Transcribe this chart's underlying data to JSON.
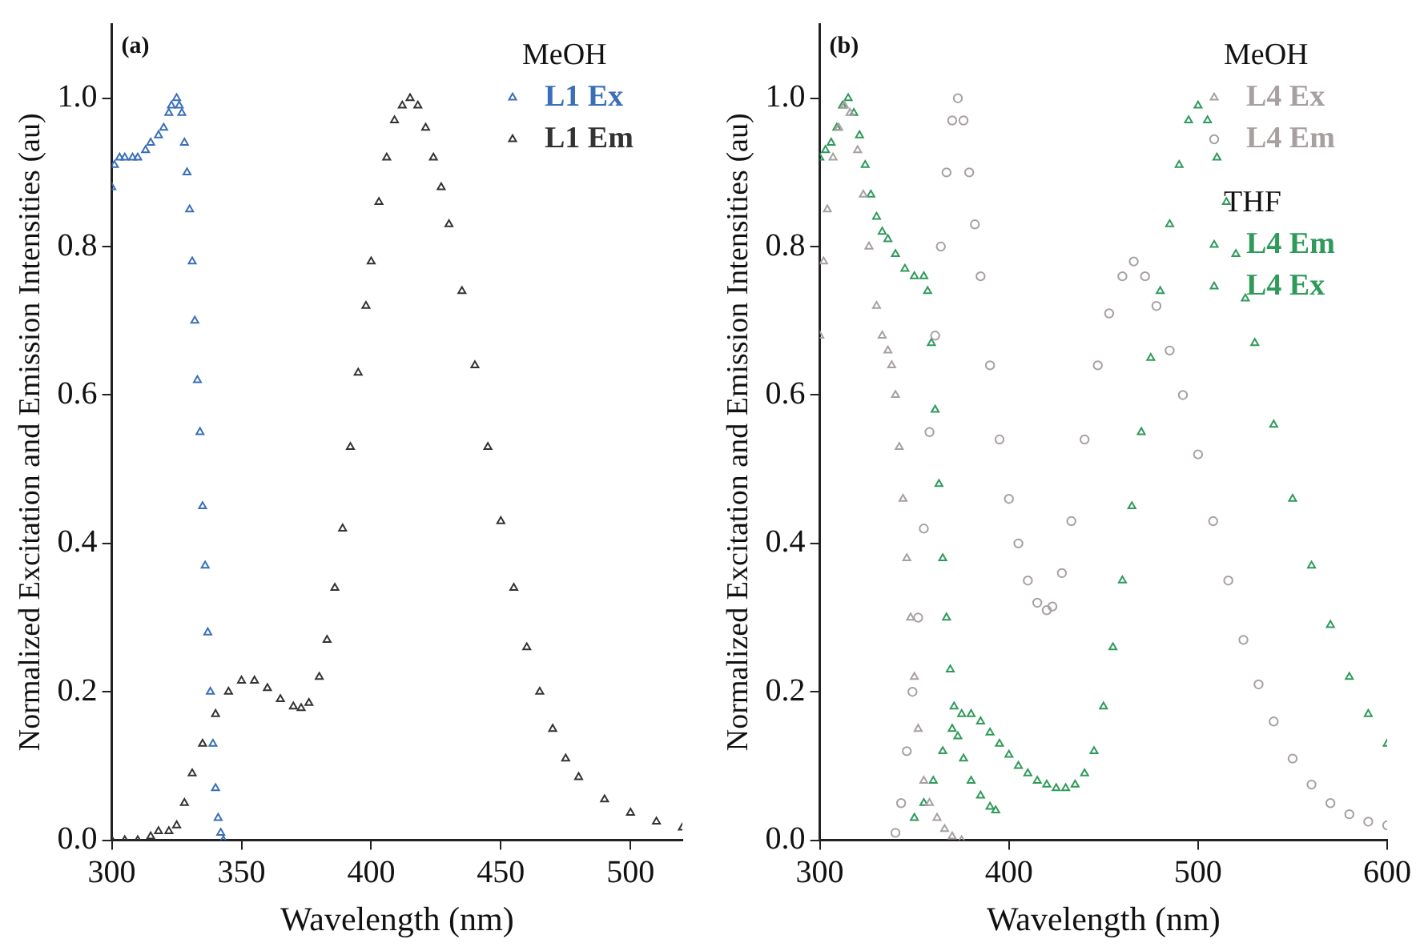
{
  "chart_data": [
    {
      "type": "scatter",
      "title": "(a)",
      "xlabel": "Wavelength (nm)",
      "ylabel": "Normalized Excitation and Emission Intensities (au)",
      "annotations": [
        "MeOH"
      ],
      "xlim": [
        300,
        520
      ],
      "xticks": [
        300,
        350,
        400,
        450,
        500
      ],
      "ylim": [
        0,
        1.1
      ],
      "yticks": [
        {
          "value": 0,
          "label": "0.0"
        },
        {
          "value": 0.2,
          "label": "0.2"
        },
        {
          "value": 0.4,
          "label": "0.4"
        },
        {
          "value": 0.6,
          "label": "0.6"
        },
        {
          "value": 0.8,
          "label": "0.8"
        },
        {
          "value": 1,
          "label": "1.0"
        }
      ],
      "grid": false,
      "legend": "top right",
      "series": [
        {
          "name": "L1 Ex",
          "color": "#3a6fb8",
          "marker": "triangle",
          "x": [
            300,
            301,
            303,
            305,
            308,
            310,
            313,
            315,
            318,
            320,
            322,
            323,
            325,
            326,
            327,
            328,
            329,
            330,
            331,
            332,
            333,
            334,
            335,
            336,
            337,
            338,
            339,
            340,
            341,
            342,
            343
          ],
          "values": [
            0.88,
            0.91,
            0.92,
            0.92,
            0.92,
            0.92,
            0.93,
            0.94,
            0.95,
            0.96,
            0.98,
            0.99,
            1.0,
            0.99,
            0.98,
            0.94,
            0.9,
            0.85,
            0.78,
            0.7,
            0.62,
            0.55,
            0.45,
            0.37,
            0.28,
            0.2,
            0.13,
            0.07,
            0.03,
            0.01,
            0.0
          ]
        },
        {
          "name": "L1 Em",
          "color": "#333333",
          "marker": "triangle",
          "x": [
            300,
            305,
            310,
            315,
            318,
            322,
            325,
            328,
            331,
            335,
            340,
            345,
            350,
            355,
            360,
            365,
            370,
            373,
            376,
            380,
            383,
            386,
            389,
            392,
            395,
            398,
            400,
            403,
            406,
            409,
            412,
            415,
            418,
            421,
            424,
            427,
            430,
            435,
            440,
            445,
            450,
            455,
            460,
            465,
            470,
            475,
            480,
            490,
            500,
            510,
            520
          ],
          "values": [
            0,
            0,
            0,
            0.005,
            0.012,
            0.012,
            0.02,
            0.05,
            0.09,
            0.13,
            0.17,
            0.2,
            0.215,
            0.215,
            0.205,
            0.19,
            0.18,
            0.178,
            0.185,
            0.22,
            0.27,
            0.34,
            0.42,
            0.53,
            0.63,
            0.72,
            0.78,
            0.86,
            0.92,
            0.97,
            0.99,
            1.0,
            0.99,
            0.96,
            0.92,
            0.88,
            0.83,
            0.74,
            0.64,
            0.53,
            0.43,
            0.34,
            0.26,
            0.2,
            0.15,
            0.11,
            0.085,
            0.055,
            0.037,
            0.025,
            0.017
          ]
        }
      ]
    },
    {
      "type": "scatter",
      "title": "(b)",
      "xlabel": "Wavelength (nm)",
      "ylabel": "Normalized Excitation and Emission Intensities (au)",
      "annotations": [
        "MeOH",
        "THF"
      ],
      "xlim": [
        300,
        600
      ],
      "xticks": [
        300,
        400,
        500,
        600
      ],
      "ylim": [
        0,
        1.1
      ],
      "yticks": [
        {
          "value": 0,
          "label": "0.0"
        },
        {
          "value": 0.2,
          "label": "0.2"
        },
        {
          "value": 0.4,
          "label": "0.4"
        },
        {
          "value": 0.6,
          "label": "0.6"
        },
        {
          "value": 0.8,
          "label": "0.8"
        },
        {
          "value": 1,
          "label": "1.0"
        }
      ],
      "grid": false,
      "legend": "top right",
      "series": [
        {
          "name": "L4 Ex",
          "color": "#a8a0a0",
          "marker": "triangle",
          "x": [
            300,
            302,
            304,
            307,
            310,
            313,
            316,
            320,
            323,
            326,
            330,
            333,
            336,
            338,
            340,
            342,
            344,
            346,
            348,
            350,
            352,
            355,
            358,
            362,
            366,
            370,
            375
          ],
          "values": [
            0.68,
            0.78,
            0.85,
            0.92,
            0.96,
            0.99,
            0.98,
            0.93,
            0.87,
            0.8,
            0.72,
            0.68,
            0.66,
            0.64,
            0.6,
            0.53,
            0.46,
            0.38,
            0.3,
            0.22,
            0.15,
            0.08,
            0.05,
            0.03,
            0.015,
            0.005,
            0
          ]
        },
        {
          "name": "L4 Em",
          "color": "#a8a0a0",
          "marker": "circle",
          "x": [
            340,
            343,
            346,
            349,
            352,
            355,
            358,
            361,
            364,
            367,
            370,
            373,
            376,
            379,
            382,
            385,
            390,
            395,
            400,
            405,
            410,
            415,
            420,
            423,
            428,
            433,
            440,
            447,
            453,
            460,
            466,
            472,
            478,
            485,
            492,
            500,
            508,
            516,
            524,
            532,
            540,
            550,
            560,
            570,
            580,
            590,
            600
          ],
          "values": [
            0.01,
            0.05,
            0.12,
            0.2,
            0.3,
            0.42,
            0.55,
            0.68,
            0.8,
            0.9,
            0.97,
            1.0,
            0.97,
            0.9,
            0.83,
            0.76,
            0.64,
            0.54,
            0.46,
            0.4,
            0.35,
            0.32,
            0.31,
            0.315,
            0.36,
            0.43,
            0.54,
            0.64,
            0.71,
            0.76,
            0.78,
            0.76,
            0.72,
            0.66,
            0.6,
            0.52,
            0.43,
            0.35,
            0.27,
            0.21,
            0.16,
            0.11,
            0.075,
            0.05,
            0.035,
            0.025,
            0.02
          ]
        },
        {
          "name": "L4 Em",
          "color": "#2f9a5a",
          "marker": "triangle",
          "x": [
            350,
            355,
            360,
            365,
            370,
            375,
            380,
            385,
            390,
            395,
            400,
            405,
            410,
            415,
            420,
            425,
            430,
            435,
            440,
            445,
            450,
            455,
            460,
            465,
            470,
            475,
            480,
            485,
            490,
            495,
            500,
            505,
            510,
            515,
            520,
            525,
            530,
            540,
            550,
            560,
            570,
            580,
            590,
            600
          ],
          "values": [
            0.03,
            0.05,
            0.08,
            0.12,
            0.15,
            0.17,
            0.17,
            0.16,
            0.145,
            0.13,
            0.115,
            0.1,
            0.09,
            0.08,
            0.075,
            0.07,
            0.07,
            0.075,
            0.09,
            0.12,
            0.18,
            0.26,
            0.35,
            0.45,
            0.55,
            0.65,
            0.74,
            0.83,
            0.91,
            0.97,
            0.99,
            0.97,
            0.92,
            0.86,
            0.79,
            0.73,
            0.67,
            0.56,
            0.46,
            0.37,
            0.29,
            0.22,
            0.17,
            0.13
          ]
        },
        {
          "name": "L4 Ex",
          "color": "#2f9a5a",
          "marker": "triangle",
          "x": [
            300,
            303,
            306,
            309,
            312,
            315,
            318,
            321,
            324,
            327,
            330,
            333,
            336,
            340,
            345,
            350,
            355,
            357,
            359,
            361,
            363,
            365,
            367,
            369,
            371,
            373,
            376,
            380,
            385,
            390,
            393
          ],
          "values": [
            0.92,
            0.93,
            0.94,
            0.96,
            0.99,
            1.0,
            0.98,
            0.95,
            0.91,
            0.87,
            0.84,
            0.82,
            0.81,
            0.79,
            0.77,
            0.76,
            0.76,
            0.74,
            0.67,
            0.58,
            0.48,
            0.38,
            0.3,
            0.23,
            0.18,
            0.14,
            0.11,
            0.08,
            0.06,
            0.045,
            0.04
          ]
        }
      ]
    }
  ]
}
